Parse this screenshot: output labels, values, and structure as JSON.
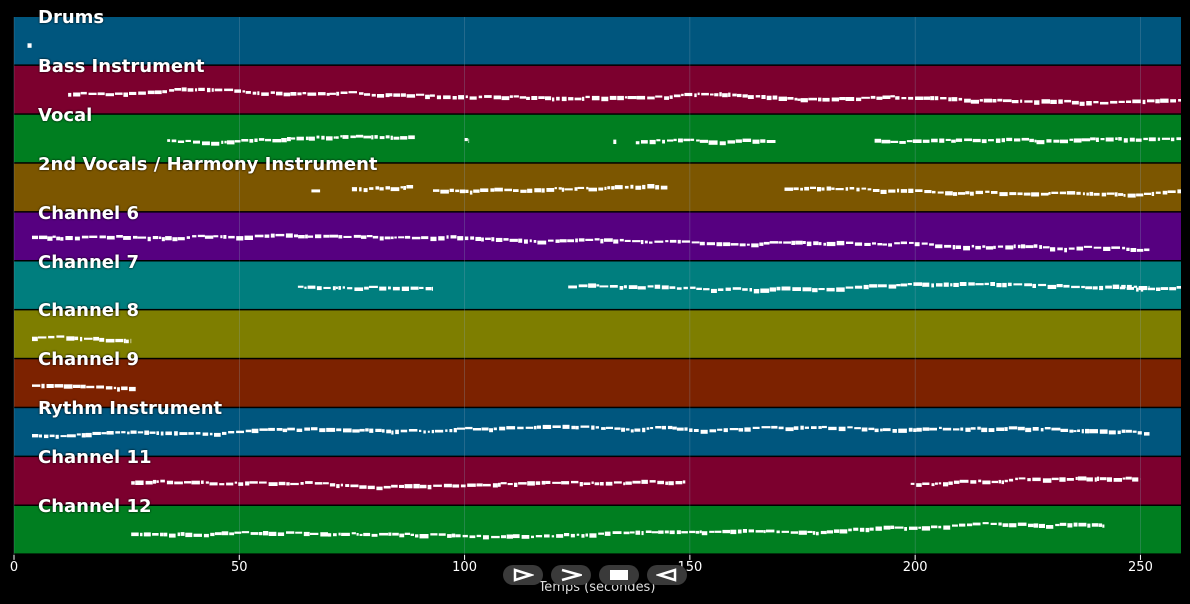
{
  "colors": {
    "background": "#000000",
    "note": "#ffffff",
    "grid": "#8aa4b8"
  },
  "tracks": [
    {
      "name": "Drums",
      "color": "#00567e"
    },
    {
      "name": "Bass Instrument",
      "color": "#7c002e"
    },
    {
      "name": "Vocal",
      "color": "#007e20"
    },
    {
      "name": "2nd Vocals / Harmony Instrument",
      "color": "#7c5600"
    },
    {
      "name": "Channel 6",
      "color": "#560080"
    },
    {
      "name": "Channel 7",
      "color": "#007e7e"
    },
    {
      "name": "Channel 8",
      "color": "#7e7e00"
    },
    {
      "name": "Channel 9",
      "color": "#7c2200"
    },
    {
      "name": "Rythm Instrument",
      "color": "#00567e"
    },
    {
      "name": "Channel 11",
      "color": "#7c002e"
    },
    {
      "name": "Channel 12",
      "color": "#007e20"
    }
  ],
  "chart_data": {
    "type": "piano-roll",
    "xlabel": "Temps (secondes)",
    "xlim": [
      0,
      259
    ],
    "xticks": [
      0,
      50,
      100,
      150,
      200,
      250
    ],
    "tracks_activity": [
      {
        "name": "Drums",
        "segments": [
          [
            3,
            4
          ]
        ]
      },
      {
        "name": "Bass Instrument",
        "segments": [
          [
            12,
            259
          ]
        ]
      },
      {
        "name": "Vocal",
        "segments": [
          [
            34,
            89
          ],
          [
            100,
            101
          ],
          [
            133,
            134
          ],
          [
            138,
            169
          ],
          [
            191,
            259
          ]
        ]
      },
      {
        "name": "2nd Vocals / Harmony Instrument",
        "segments": [
          [
            66,
            68
          ],
          [
            75,
            89
          ],
          [
            93,
            145
          ],
          [
            171,
            259
          ]
        ]
      },
      {
        "name": "Channel 6",
        "segments": [
          [
            4,
            252
          ]
        ]
      },
      {
        "name": "Channel 7",
        "segments": [
          [
            63,
            93
          ],
          [
            123,
            252
          ],
          [
            244,
            259
          ]
        ]
      },
      {
        "name": "Channel 8",
        "segments": [
          [
            4,
            26
          ]
        ]
      },
      {
        "name": "Channel 9",
        "segments": [
          [
            4,
            27
          ]
        ]
      },
      {
        "name": "Rythm Instrument",
        "segments": [
          [
            4,
            252
          ]
        ]
      },
      {
        "name": "Channel 11",
        "segments": [
          [
            26,
            149
          ],
          [
            199,
            250
          ]
        ]
      },
      {
        "name": "Channel 12",
        "segments": [
          [
            26,
            242
          ]
        ]
      }
    ]
  },
  "controls": {
    "play_icon": "play-outline-icon",
    "forward_icon": "chevron-forward-icon",
    "stop_icon": "stop-icon",
    "rewind_icon": "play-reverse-icon"
  }
}
